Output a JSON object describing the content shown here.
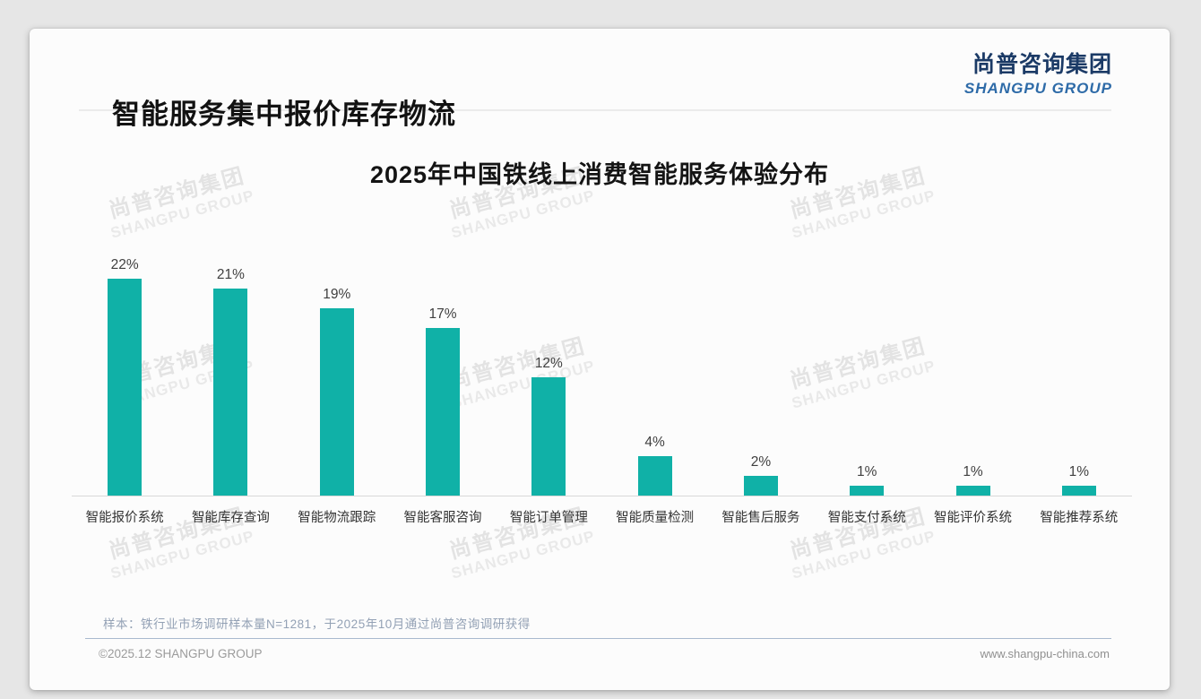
{
  "page": {
    "title": "智能服务集中报价库存物流",
    "logo": {
      "cn": "尚普咨询集团",
      "en": "SHANGPU GROUP"
    },
    "watermark": {
      "cn": "尚普咨询集团",
      "en": "SHANGPU GROUP"
    },
    "footnote": "样本：铁行业市场调研样本量N=1281，于2025年10月通过尚普咨询调研获得",
    "footer": {
      "left": "©2025.12 SHANGPU GROUP",
      "right": "www.shangpu-china.com"
    }
  },
  "chart_data": {
    "type": "bar",
    "title": "2025年中国铁线上消费智能服务体验分布",
    "categories": [
      "智能报价系统",
      "智能库存查询",
      "智能物流跟踪",
      "智能客服咨询",
      "智能订单管理",
      "智能质量检测",
      "智能售后服务",
      "智能支付系统",
      "智能评价系统",
      "智能推荐系统"
    ],
    "values": [
      22,
      21,
      19,
      17,
      12,
      4,
      2,
      1,
      1,
      1
    ],
    "value_labels": [
      "22%",
      "21%",
      "19%",
      "17%",
      "12%",
      "4%",
      "2%",
      "1%",
      "1%",
      "1%"
    ],
    "unit": "%",
    "bar_color": "#10b1a7",
    "ylim": [
      0,
      25
    ],
    "grid": false,
    "legend": false,
    "xlabel": "",
    "ylabel": ""
  }
}
